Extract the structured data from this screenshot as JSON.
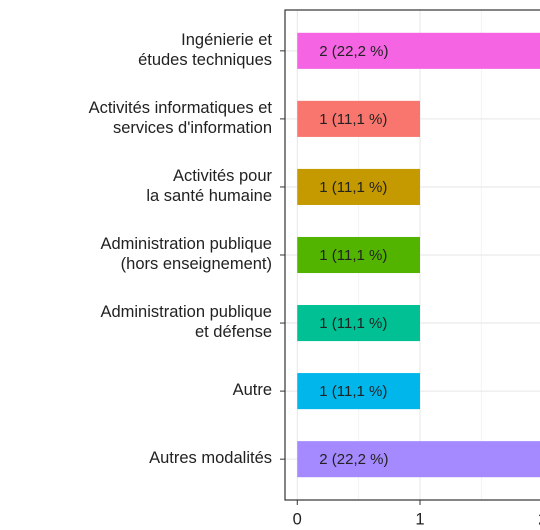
{
  "chart_data": {
    "type": "bar",
    "orientation": "horizontal",
    "categories": [
      [
        "Ingénierie et",
        "études techniques"
      ],
      [
        "Activités informatiques et",
        "services d'information"
      ],
      [
        "Activités pour",
        "la santé humaine"
      ],
      [
        "Administration publique",
        "(hors enseignement)"
      ],
      [
        "Administration publique",
        "et défense"
      ],
      [
        "Autre"
      ],
      [
        "Autres modalités"
      ]
    ],
    "values": [
      2,
      1,
      1,
      1,
      1,
      1,
      2
    ],
    "value_labels": [
      "2 (22,2 %)",
      "1 (11,1 %)",
      "1 (11,1 %)",
      "1 (11,1 %)",
      "1 (11,1 %)",
      "1 (11,1 %)",
      "2 (22,2 %)"
    ],
    "colors": [
      "#F564E3",
      "#F8766D",
      "#C49A00",
      "#53B400",
      "#00C094",
      "#00B6EB",
      "#A58AFF"
    ],
    "xlim": [
      -0.1,
      2.1
    ],
    "xticks": [
      0,
      1,
      2
    ],
    "xminorticks": [
      0.5,
      1.5
    ],
    "grid": true
  }
}
